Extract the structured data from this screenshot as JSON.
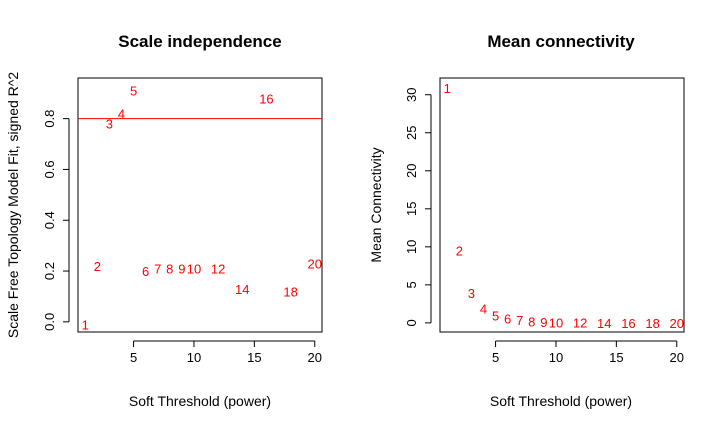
{
  "chart_data": [
    {
      "type": "scatter",
      "marker": "text-label",
      "title": "Scale independence",
      "xlabel": "Soft Threshold (power)",
      "ylabel": "Scale Free Topology Model Fit, signed R^2",
      "xlim": [
        0.4,
        20.6
      ],
      "ylim": [
        -0.04,
        0.96
      ],
      "xticks": [
        5,
        10,
        15,
        20
      ],
      "yticks": [
        0.0,
        0.2,
        0.4,
        0.6,
        0.8
      ],
      "ytick_labels": [
        "0.0",
        "0.2",
        "0.4",
        "0.6",
        "0.8"
      ],
      "point_color": "#ff0000",
      "hline": {
        "y": 0.8,
        "color": "#ff0000"
      },
      "grid": false,
      "points": [
        {
          "x": 1,
          "y": -0.01,
          "label": "1"
        },
        {
          "x": 2,
          "y": 0.22,
          "label": "2"
        },
        {
          "x": 3,
          "y": 0.78,
          "label": "3"
        },
        {
          "x": 4,
          "y": 0.82,
          "label": "4"
        },
        {
          "x": 5,
          "y": 0.91,
          "label": "5"
        },
        {
          "x": 6,
          "y": 0.2,
          "label": "6"
        },
        {
          "x": 7,
          "y": 0.21,
          "label": "7"
        },
        {
          "x": 8,
          "y": 0.21,
          "label": "8"
        },
        {
          "x": 9,
          "y": 0.21,
          "label": "9"
        },
        {
          "x": 10,
          "y": 0.21,
          "label": "10"
        },
        {
          "x": 12,
          "y": 0.21,
          "label": "12"
        },
        {
          "x": 14,
          "y": 0.13,
          "label": "14"
        },
        {
          "x": 16,
          "y": 0.88,
          "label": "16"
        },
        {
          "x": 18,
          "y": 0.12,
          "label": "18"
        },
        {
          "x": 20,
          "y": 0.23,
          "label": "20"
        }
      ]
    },
    {
      "type": "scatter",
      "marker": "text-label",
      "title": "Mean connectivity",
      "xlabel": "Soft Threshold (power)",
      "ylabel": "Mean Connectivity",
      "xlim": [
        0.4,
        20.6
      ],
      "ylim": [
        -1.2,
        32.2
      ],
      "xticks": [
        5,
        10,
        15,
        20
      ],
      "yticks": [
        0,
        5,
        10,
        15,
        20,
        25,
        30
      ],
      "ytick_labels": [
        "0",
        "5",
        "10",
        "15",
        "20",
        "25",
        "30"
      ],
      "point_color": "#ff0000",
      "grid": false,
      "points": [
        {
          "x": 1,
          "y": 30.9,
          "label": "1"
        },
        {
          "x": 2,
          "y": 9.5,
          "label": "2"
        },
        {
          "x": 3,
          "y": 3.9,
          "label": "3"
        },
        {
          "x": 4,
          "y": 1.9,
          "label": "4"
        },
        {
          "x": 5,
          "y": 1.0,
          "label": "5"
        },
        {
          "x": 6,
          "y": 0.6,
          "label": "6"
        },
        {
          "x": 7,
          "y": 0.4,
          "label": "7"
        },
        {
          "x": 8,
          "y": 0.2,
          "label": "8"
        },
        {
          "x": 9,
          "y": 0.1,
          "label": "9"
        },
        {
          "x": 10,
          "y": 0.05,
          "label": "10"
        },
        {
          "x": 12,
          "y": 0.02,
          "label": "12"
        },
        {
          "x": 14,
          "y": 0.01,
          "label": "14"
        },
        {
          "x": 16,
          "y": 0.0,
          "label": "16"
        },
        {
          "x": 18,
          "y": 0.0,
          "label": "18"
        },
        {
          "x": 20,
          "y": 0.0,
          "label": "20"
        }
      ]
    }
  ]
}
